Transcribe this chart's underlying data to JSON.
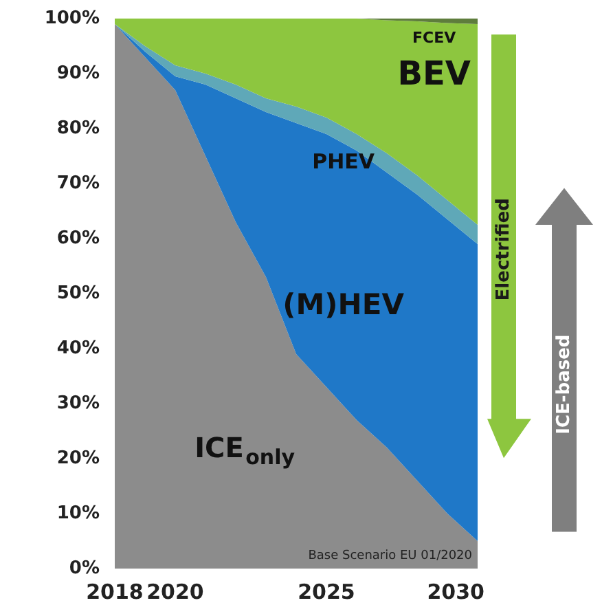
{
  "chart_data": {
    "type": "area",
    "stacked": true,
    "x": [
      2018,
      2019,
      2020,
      2021,
      2022,
      2023,
      2024,
      2025,
      2026,
      2027,
      2028,
      2029,
      2030
    ],
    "series": [
      {
        "name": "ICE$_{only}$",
        "color": "#8c8c8c",
        "values": [
          99,
          93,
          87,
          75,
          63,
          53,
          39,
          33,
          27,
          22,
          16,
          10,
          5
        ]
      },
      {
        "name": "(M)HEV",
        "color": "#1f78c8",
        "values": [
          0,
          1,
          2.5,
          13,
          22.5,
          30,
          42,
          46,
          49,
          50,
          52,
          53.5,
          54
        ]
      },
      {
        "name": "PHEV",
        "color": "#5fa8b8",
        "values": [
          0,
          1,
          2,
          2,
          2.5,
          2.5,
          3,
          3,
          3,
          3.5,
          3.5,
          3.5,
          3.5
        ]
      },
      {
        "name": "BEV",
        "color": "#8dc63f",
        "values": [
          1,
          5,
          8.5,
          10,
          12,
          14.5,
          16,
          18,
          21,
          24.2,
          28,
          32.2,
          36.5
        ]
      },
      {
        "name": "FCEV",
        "color": "#5e7d3c",
        "values": [
          0,
          0,
          0,
          0,
          0,
          0,
          0,
          0,
          0,
          0.3,
          0.5,
          0.8,
          1
        ]
      }
    ],
    "xlim": [
      2018,
      2030
    ],
    "ylim": [
      0,
      100
    ],
    "xticks": [
      2018,
      2020,
      2025,
      2030
    ],
    "yticks": [
      {
        "value": 0,
        "label": "0%"
      },
      {
        "value": 10,
        "label": "10%"
      },
      {
        "value": 20,
        "label": "20%"
      },
      {
        "value": 30,
        "label": "30%"
      },
      {
        "value": 40,
        "label": "40%"
      },
      {
        "value": 50,
        "label": "50%"
      },
      {
        "value": 60,
        "label": "60%"
      },
      {
        "value": 70,
        "label": "70%"
      },
      {
        "value": 80,
        "label": "80%"
      },
      {
        "value": 90,
        "label": "90%"
      },
      {
        "value": 100,
        "label": "100%"
      }
    ],
    "grid": false,
    "annotations": [
      "Base Scenario EU 01/2020",
      "Electrified",
      "ICE-based"
    ]
  }
}
